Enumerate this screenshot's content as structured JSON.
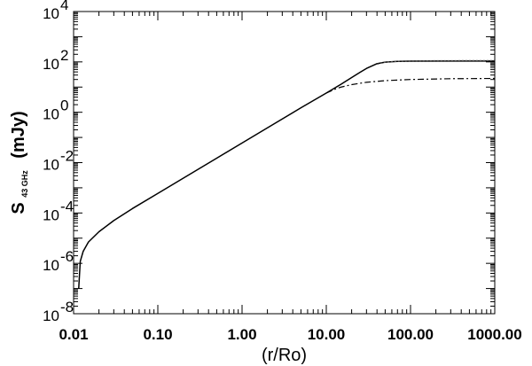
{
  "chart_data": {
    "type": "line",
    "xlabel": "(r/Ro)",
    "ylabel": {
      "main": "S",
      "subscript": "43 GHz",
      "unit": "(mJy)"
    },
    "x_scale": "log",
    "y_scale": "log",
    "xlim": [
      0.01,
      1000
    ],
    "ylim": [
      1e-08,
      10000
    ],
    "x_ticks": [
      {
        "value": 0.01,
        "label": "0.01"
      },
      {
        "value": 0.1,
        "label": "0.10"
      },
      {
        "value": 1,
        "label": "1.00"
      },
      {
        "value": 10,
        "label": "10.00"
      },
      {
        "value": 100,
        "label": "100.00"
      },
      {
        "value": 1000,
        "label": "1000.00"
      }
    ],
    "y_ticks": [
      {
        "value": 1e-08,
        "base": "10",
        "exp": "-8"
      },
      {
        "value": 1e-06,
        "base": "10",
        "exp": "-6"
      },
      {
        "value": 0.0001,
        "base": "10",
        "exp": "-4"
      },
      {
        "value": 0.01,
        "base": "10",
        "exp": "-2"
      },
      {
        "value": 1,
        "base": "10",
        "exp": "0"
      },
      {
        "value": 100,
        "base": "10",
        "exp": "2"
      },
      {
        "value": 10000,
        "base": "10",
        "exp": "4"
      }
    ],
    "grid": false,
    "legend": "none",
    "series": [
      {
        "style": "solid",
        "color": "#000000",
        "points": [
          [
            0.0115,
            1e-07
          ],
          [
            0.012,
            1.2e-06
          ],
          [
            0.013,
            3e-06
          ],
          [
            0.015,
            7e-06
          ],
          [
            0.02,
            1.8e-05
          ],
          [
            0.03,
            5e-05
          ],
          [
            0.05,
            0.00015
          ],
          [
            0.1,
            0.0006
          ],
          [
            0.2,
            0.0024
          ],
          [
            0.5,
            0.015
          ],
          [
            1,
            0.06
          ],
          [
            2,
            0.24
          ],
          [
            5,
            1.5
          ],
          [
            10,
            5.8
          ],
          [
            15,
            13
          ],
          [
            20,
            24
          ],
          [
            25,
            38
          ],
          [
            30,
            55
          ],
          [
            40,
            85
          ],
          [
            50,
            98
          ],
          [
            70,
            105
          ],
          [
            100,
            107
          ],
          [
            300,
            108
          ],
          [
            1000,
            108
          ]
        ]
      },
      {
        "style": "dash-dot",
        "color": "#000000",
        "points": [
          [
            10,
            5.8
          ],
          [
            13,
            8.5
          ],
          [
            15,
            10
          ],
          [
            20,
            12.5
          ],
          [
            30,
            15.5
          ],
          [
            50,
            18
          ],
          [
            100,
            20
          ],
          [
            300,
            21.5
          ],
          [
            1000,
            22
          ]
        ]
      },
      {
        "style": "dotted",
        "color": "#555555",
        "points": [
          [
            40,
            80
          ],
          [
            50,
            97
          ],
          [
            70,
            106
          ],
          [
            100,
            110
          ],
          [
            300,
            112
          ],
          [
            1000,
            113
          ]
        ]
      }
    ]
  }
}
